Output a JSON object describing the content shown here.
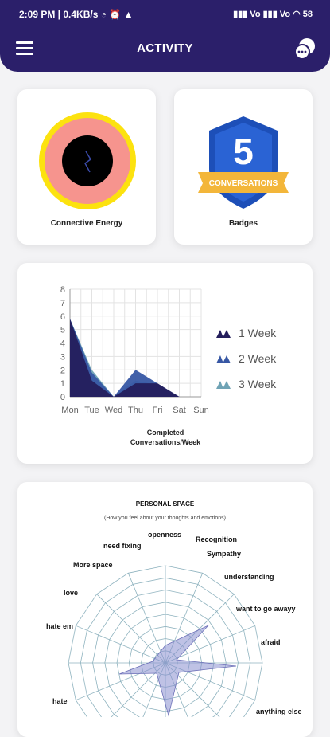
{
  "status_bar": {
    "left": "2:09 PM | 0.4KB/s ◔ ⏰ ▲",
    "right": "▮▮▮ Vo ▮▮▮ Vo ◠ 58"
  },
  "app_bar": {
    "title": "ACTIVITY",
    "menu_icon": "hamburger-icon",
    "chat_icon": "chat-bubbles-icon"
  },
  "connective_energy": {
    "label": "Connective Energy",
    "colors": {
      "ring": "#fce20f",
      "fill": "#f6948e",
      "center": "#000000"
    }
  },
  "badges": {
    "label": "Badges",
    "number": "5",
    "ribbon": "CONVERSATIONS",
    "colors": {
      "shield": "#1d4fb8",
      "ribbon": "#f3b63a"
    }
  },
  "weekly_chart": {
    "caption_line1": "Completed",
    "caption_line2": "Conversations/Week"
  },
  "chart_data": {
    "type": "area",
    "categories": [
      "Mon",
      "Tue",
      "Wed",
      "Thu",
      "Fri",
      "Sat",
      "Sun"
    ],
    "ylim": [
      0,
      8
    ],
    "yticks": [
      "0",
      "1",
      "2",
      "3",
      "4",
      "5",
      "6",
      "7",
      "8"
    ],
    "grid": true,
    "legend_position": "right",
    "series": [
      {
        "name": "1 Week",
        "color": "#241e5c",
        "values": [
          5.8,
          1.2,
          0,
          1,
          1,
          0,
          null
        ]
      },
      {
        "name": "2 Week",
        "color": "#3757a4",
        "values": [
          5.8,
          1.8,
          0,
          2,
          1,
          0,
          null
        ]
      },
      {
        "name": "3 Week",
        "color": "#6fa3b5",
        "values": [
          5.8,
          2,
          0,
          1.2,
          0.9,
          0,
          null
        ]
      }
    ]
  },
  "personal_space": {
    "title": "PERSONAL SPACE",
    "subtitle": "(How you feel about your thoughts and emotions)",
    "labels": [
      "openness",
      "Recognition",
      "need fixing",
      "Sympathy",
      "More space",
      "understanding",
      "love",
      "want to go awayy",
      "hate em",
      "afraid",
      "hate",
      "anything else"
    ]
  }
}
